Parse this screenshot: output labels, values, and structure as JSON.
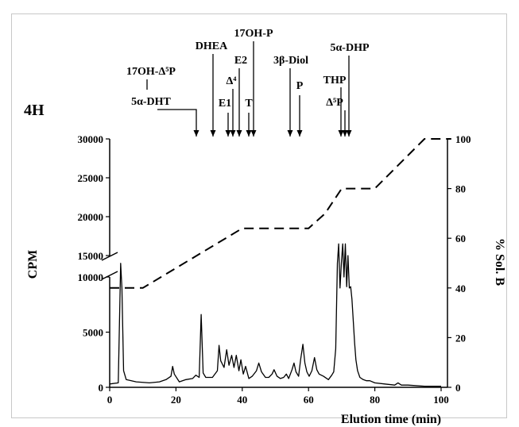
{
  "chart_data": {
    "type": "line",
    "panel_label": "4H",
    "xlabel": "Elution time (min)",
    "ylabel_left": "CPM",
    "ylabel_right": "% Sol. B",
    "xlim": [
      0,
      105
    ],
    "x_ticks": [
      "0",
      "20",
      "40",
      "60",
      "80",
      "100"
    ],
    "y_left_ticks_lower": [
      "0",
      "5000",
      "10000"
    ],
    "y_left_ticks_upper": [
      "15000",
      "20000",
      "25000",
      "30000"
    ],
    "y_right_ticks": [
      "0",
      "20",
      "40",
      "60",
      "80",
      "100"
    ],
    "y_left_axis_break": [
      10000,
      15000
    ],
    "y_right_lim": [
      0,
      100
    ],
    "series": [
      {
        "name": "",
        "style": "solid",
        "axis": "left",
        "x": [
          0,
          2.6,
          3.3,
          3.7,
          4.2,
          5,
          8,
          12,
          15,
          17,
          18.5,
          19,
          19.5,
          21,
          23,
          25,
          26,
          27,
          27.6,
          28.2,
          29,
          31,
          32.5,
          33,
          33.5,
          34.5,
          35.3,
          36,
          36.8,
          37.5,
          38.2,
          39,
          39.6,
          40.3,
          41,
          42,
          43,
          44.3,
          45,
          45.8,
          47,
          48,
          49,
          49.6,
          50.5,
          51.5,
          52.5,
          53.3,
          54,
          55,
          55.6,
          56.2,
          57,
          57.6,
          58.3,
          58.9,
          59.5,
          60.2,
          61,
          61.8,
          62.5,
          63.2,
          64.5,
          66,
          67,
          67.6,
          68.2,
          68.7,
          69.1,
          69.5,
          69.9,
          70.3,
          70.7,
          71.1,
          71.5,
          71.9,
          72.3,
          72.7,
          73.1,
          73.5,
          73.9,
          74.3,
          74.8,
          75.5,
          76.5,
          77.5,
          78.5,
          80,
          83,
          86,
          87,
          88,
          90,
          95,
          100
        ],
        "y": [
          300,
          400,
          14000,
          9000,
          1500,
          700,
          500,
          400,
          500,
          700,
          1000,
          1900,
          1200,
          500,
          700,
          800,
          1100,
          900,
          6600,
          1300,
          900,
          900,
          1500,
          3800,
          2400,
          1800,
          3400,
          2000,
          2900,
          1800,
          2900,
          1500,
          2500,
          1200,
          1900,
          800,
          1000,
          1500,
          2200,
          1400,
          900,
          900,
          1200,
          1600,
          1000,
          800,
          900,
          1200,
          800,
          1600,
          2200,
          1400,
          1000,
          2500,
          3900,
          2200,
          1400,
          1000,
          1500,
          2700,
          1600,
          1200,
          1000,
          700,
          1100,
          1400,
          3500,
          14000,
          16500,
          9000,
          14000,
          16500,
          10000,
          16500,
          11000,
          15000,
          9000,
          11000,
          8000,
          6000,
          4000,
          2500,
          1500,
          900,
          700,
          600,
          600,
          400,
          300,
          200,
          400,
          200,
          200,
          100,
          100
        ]
      },
      {
        "name": "",
        "style": "dashed",
        "axis": "right",
        "x": [
          0,
          10,
          40,
          60,
          65,
          70,
          80,
          95,
          103
        ],
        "y": [
          40,
          40,
          64,
          64,
          70,
          80,
          80,
          100,
          100
        ]
      }
    ],
    "annotations": [
      {
        "label": "17OH-Δ⁵P",
        "x": 27.5
      },
      {
        "label": "5α-DHT",
        "x": 27.5
      },
      {
        "label": "DHEA",
        "x": 33
      },
      {
        "label": "E1",
        "x": 37.5
      },
      {
        "label": "Δ⁴",
        "x": 38.7
      },
      {
        "label": "E2",
        "x": 40.5
      },
      {
        "label": "T",
        "x": 44.5
      },
      {
        "label": "17OH-P",
        "x": 45.5
      },
      {
        "label": "3β-Diol",
        "x": 56
      },
      {
        "label": "P",
        "x": 59
      },
      {
        "label": "THP",
        "x": 72
      },
      {
        "label": "Δ⁵P",
        "x": 71
      },
      {
        "label": "5α-DHP",
        "x": 73
      }
    ]
  }
}
